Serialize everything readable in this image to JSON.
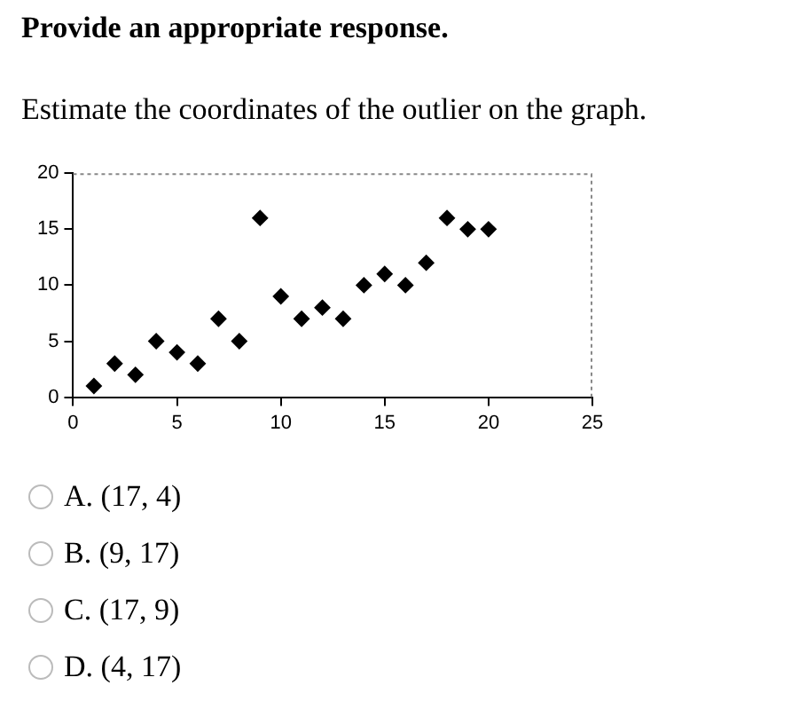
{
  "chart_data": {
    "type": "scatter",
    "title": "Provide an appropriate response.",
    "subtitle": "Estimate the coordinates of the outlier on the graph.",
    "x": [
      1,
      2,
      3,
      4,
      5,
      6,
      7,
      8,
      9,
      10,
      11,
      12,
      13,
      14,
      15,
      16,
      17,
      18,
      19,
      20
    ],
    "series": [
      {
        "color": "#000000",
        "values": [
          1,
          3,
          2,
          5,
          4,
          3,
          7,
          5,
          16,
          9,
          7,
          8,
          7,
          10,
          11,
          10,
          12,
          16,
          15,
          15
        ]
      }
    ],
    "xlim": [
      0,
      25
    ],
    "xticks": [
      0,
      5,
      10,
      15,
      20,
      25
    ],
    "ylim": [
      0,
      20
    ],
    "yticks": [
      0,
      5,
      10,
      15,
      20
    ],
    "marker": "diamond",
    "grid": false,
    "legend": false,
    "annotations": [
      "A. (17, 4)",
      "B. (9, 17)",
      "C. (17, 9)",
      "D. (4, 17)"
    ]
  }
}
